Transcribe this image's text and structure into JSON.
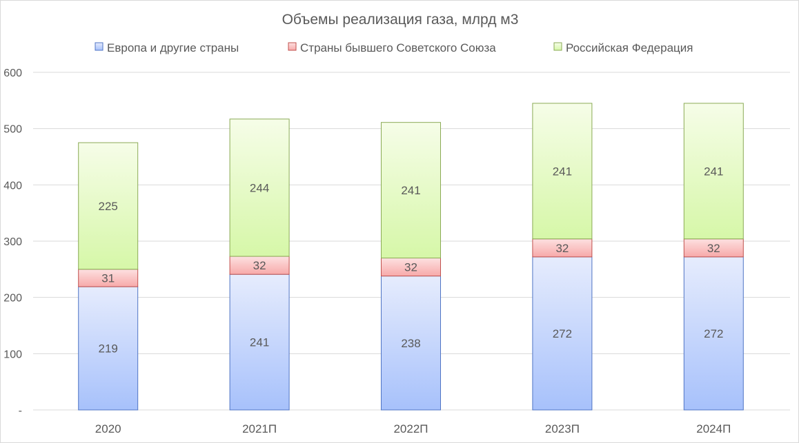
{
  "chart_data": {
    "type": "bar",
    "stacked": true,
    "title": "Объемы реализация газа, млрд м3",
    "xlabel": "",
    "ylabel": "",
    "ylim": [
      0,
      600
    ],
    "yticks": [
      {
        "value": 0,
        "label": "-"
      },
      {
        "value": 100,
        "label": "100"
      },
      {
        "value": 200,
        "label": "200"
      },
      {
        "value": 300,
        "label": "300"
      },
      {
        "value": 400,
        "label": "400"
      },
      {
        "value": 500,
        "label": "500"
      },
      {
        "value": 600,
        "label": "600"
      }
    ],
    "grid": true,
    "legend_position": "top",
    "categories": [
      "2020",
      "2021П",
      "2022П",
      "2023П",
      "2024П"
    ],
    "series": [
      {
        "name": "Европа и другие страны",
        "values": [
          219,
          241,
          238,
          272,
          272
        ],
        "color_top": "#e6ecfd",
        "color_bottom": "#a7c1fb",
        "border": "#4f74c4"
      },
      {
        "name": "Страны бывшего  Советского Союза",
        "values": [
          31,
          32,
          32,
          32,
          32
        ],
        "color_top": "#fde1e1",
        "color_bottom": "#f7a9a9",
        "border": "#c0504d"
      },
      {
        "name": "Российская Федерация",
        "values": [
          225,
          244,
          241,
          241,
          241
        ],
        "color_top": "#f6fde8",
        "color_bottom": "#d6f7a8",
        "border": "#8aaa55"
      }
    ]
  }
}
